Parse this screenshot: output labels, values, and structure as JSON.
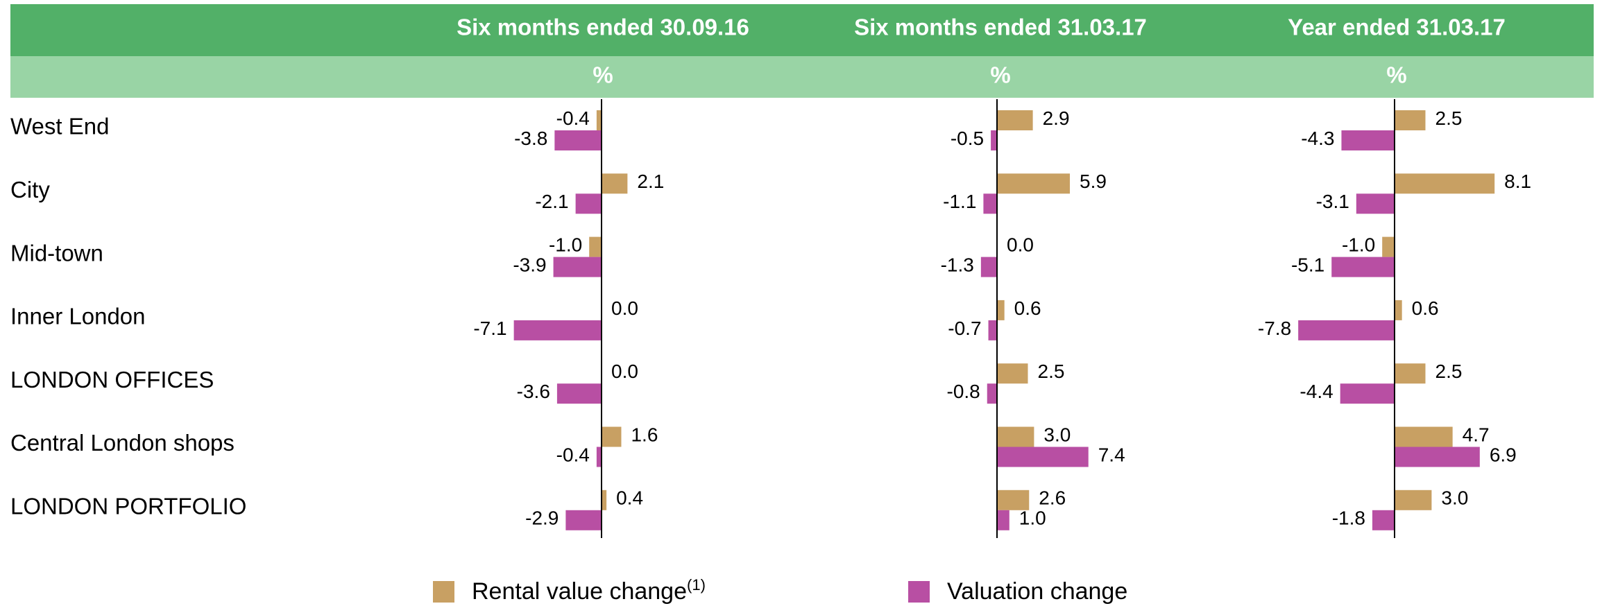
{
  "chart_data": {
    "type": "bar",
    "orientation": "horizontal",
    "categories": [
      "West End",
      "City",
      "Mid-town",
      "Inner London",
      "LONDON OFFICES",
      "Central London shops",
      "LONDON PORTFOLIO"
    ],
    "series": [
      {
        "name": "Rental value change",
        "name_note": "(1)",
        "color": "#c8a063"
      },
      {
        "name": "Valuation change",
        "color": "#b84fa3"
      }
    ],
    "panels": [
      {
        "title": "Six months ended 30.09.16",
        "unit": "%",
        "values": [
          [
            -0.4,
            2.1,
            -1.0,
            0.0,
            0.0,
            1.6,
            0.4
          ],
          [
            -3.8,
            -2.1,
            -3.9,
            -7.1,
            -3.6,
            -0.4,
            -2.9
          ]
        ],
        "value_labels": [
          [
            "-0.4",
            "2.1",
            "-1.0",
            "0.0",
            "0.0",
            "1.6",
            "0.4"
          ],
          [
            "-3.8",
            "-2.1",
            "-3.9",
            "-7.1",
            "-3.6",
            "-0.4",
            "-2.9"
          ]
        ]
      },
      {
        "title": "Six months ended 31.03.17",
        "unit": "%",
        "values": [
          [
            2.9,
            5.9,
            0.0,
            0.6,
            2.5,
            3.0,
            2.6
          ],
          [
            -0.5,
            -1.1,
            -1.3,
            -0.7,
            -0.8,
            7.4,
            1.0
          ]
        ],
        "value_labels": [
          [
            "2.9",
            "5.9",
            "0.0",
            "0.6",
            "2.5",
            "3.0",
            "2.6"
          ],
          [
            "-0.5",
            "-1.1",
            "-1.3",
            "-0.7",
            "-0.8",
            "7.4",
            "1.0"
          ]
        ]
      },
      {
        "title": "Year ended 31.03.17",
        "unit": "%",
        "values": [
          [
            2.5,
            8.1,
            -1.0,
            0.6,
            2.5,
            4.7,
            3.0
          ],
          [
            -4.3,
            -3.1,
            -5.1,
            -7.8,
            -4.4,
            6.9,
            -1.8
          ]
        ],
        "value_labels": [
          [
            "2.5",
            "8.1",
            "-1.0",
            "0.6",
            "2.5",
            "4.7",
            "3.0"
          ],
          [
            "-4.3",
            "-3.1",
            "-5.1",
            "-7.8",
            "-4.4",
            "6.9",
            "-1.8"
          ]
        ]
      }
    ]
  }
}
